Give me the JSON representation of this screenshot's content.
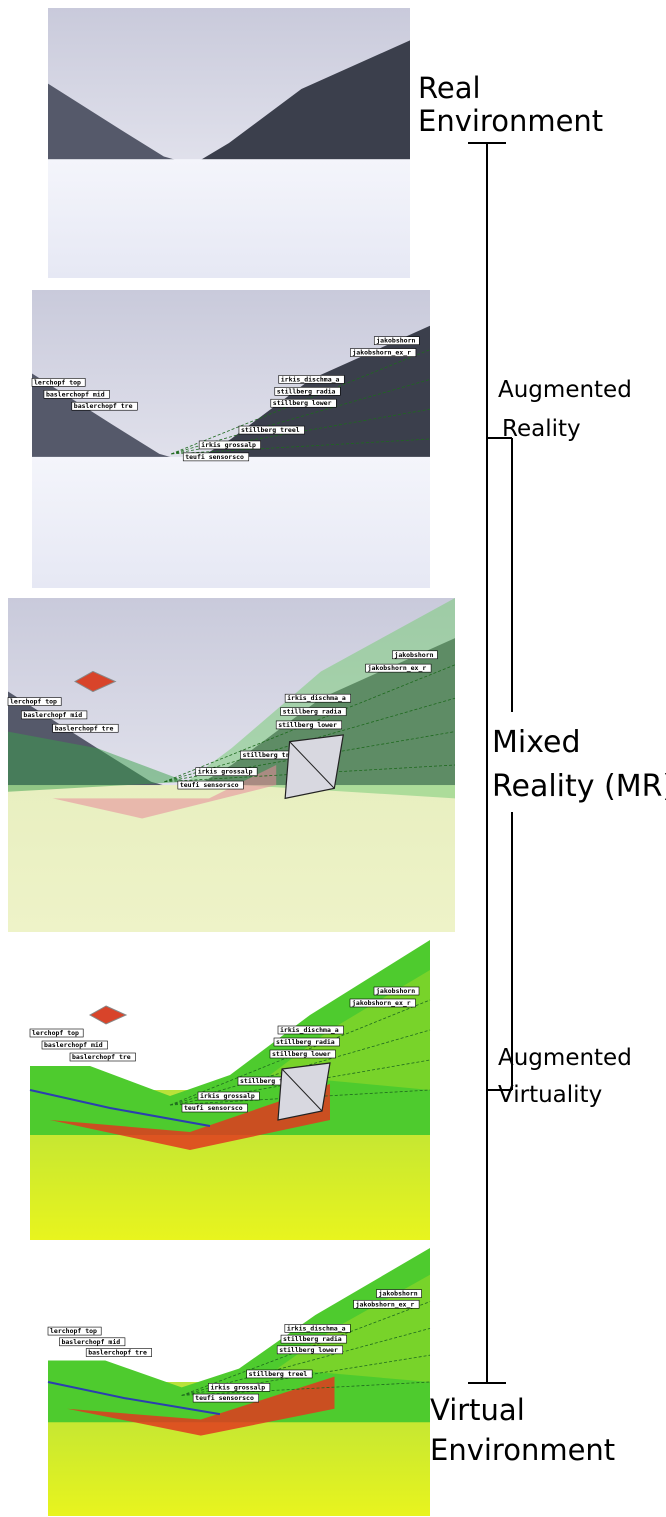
{
  "continuum": {
    "real_environment": [
      "Real",
      "Environment"
    ],
    "augmented_reality": [
      "Augmented",
      "Reality"
    ],
    "mixed_reality": [
      "Mixed",
      "Reality (MR)"
    ],
    "augmented_virtuality": [
      "Augmented",
      "Virtuality"
    ],
    "virtual_environment": [
      "Virtual",
      "Environment"
    ]
  },
  "scene_labels": [
    "jakobshorn",
    "jakobshorn_ex_r",
    "irkis_dischma_a",
    "stillberg radia",
    "stillberg lower",
    "stillberg treel",
    "irkis grossalp",
    "teufi sensorsco",
    "lerchopf top",
    "baslerchopf mid",
    "baslerchopf tre"
  ]
}
